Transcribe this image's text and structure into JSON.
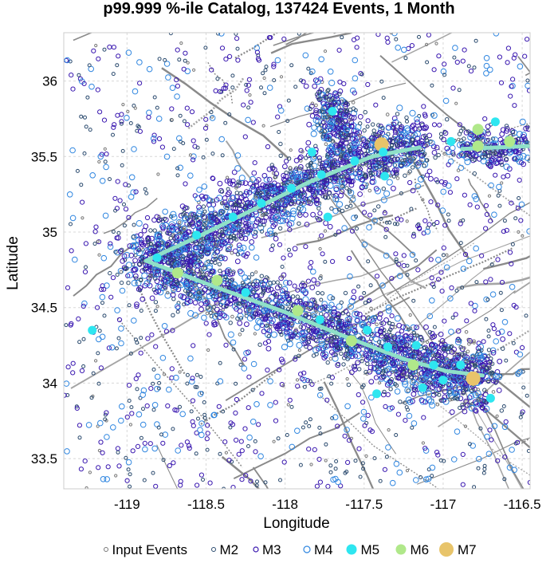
{
  "chart_data": {
    "type": "scatter",
    "title": "p99.999 %-ile Catalog, 137424 Events, 1 Month",
    "xlabel": "Longitude",
    "ylabel": "Latitude",
    "xlim": [
      -119.4,
      -116.45
    ],
    "ylim": [
      33.3,
      36.32
    ],
    "xticks": [
      -119,
      -118.5,
      -118,
      -117.5,
      -117,
      -116.5
    ],
    "yticks": [
      33.5,
      34,
      34.5,
      35,
      35.5,
      36
    ],
    "grid": true,
    "legend_position": "bottom",
    "legend": [
      {
        "label": "Input Events",
        "color": "#777777",
        "style": "open-small"
      },
      {
        "label": "M2",
        "color": "#2a4a6e",
        "style": "open-small"
      },
      {
        "label": "M3",
        "color": "#3a18b0",
        "style": "open"
      },
      {
        "label": "M4",
        "color": "#2f86e0",
        "style": "open-large"
      },
      {
        "label": "M5",
        "color": "#2ee6f0",
        "style": "filled"
      },
      {
        "label": "M6",
        "color": "#b0e88a",
        "style": "filled"
      },
      {
        "label": "M7",
        "color": "#e8c46a",
        "style": "filled-large"
      }
    ],
    "rupture_traces": [
      {
        "name": "",
        "color": "#8fe0c8",
        "points": [
          [
            -118.88,
            34.81
          ],
          [
            -118.55,
            34.97
          ],
          [
            -118.2,
            35.15
          ],
          [
            -117.85,
            35.33
          ],
          [
            -117.45,
            35.5
          ],
          [
            -117.15,
            35.56
          ]
        ]
      },
      {
        "name": "",
        "color": "#8fe0c8",
        "points": [
          [
            -118.88,
            34.81
          ],
          [
            -118.45,
            34.64
          ],
          [
            -118.0,
            34.47
          ],
          [
            -117.6,
            34.3
          ],
          [
            -117.25,
            34.16
          ],
          [
            -116.98,
            34.08
          ],
          [
            -116.75,
            34.05
          ]
        ]
      },
      {
        "name": "",
        "color": "#8fe0c8",
        "points": [
          [
            -116.88,
            35.55
          ],
          [
            -116.45,
            35.57
          ]
        ]
      }
    ],
    "large_events": [
      {
        "mag": "M7",
        "lon": -117.39,
        "lat": 35.58
      },
      {
        "mag": "M7",
        "lon": -116.81,
        "lat": 34.03
      },
      {
        "mag": "M6",
        "lon": -118.43,
        "lat": 34.68
      },
      {
        "mag": "M6",
        "lon": -118.68,
        "lat": 34.73
      },
      {
        "mag": "M6",
        "lon": -117.92,
        "lat": 34.48
      },
      {
        "mag": "M6",
        "lon": -117.58,
        "lat": 34.28
      },
      {
        "mag": "M6",
        "lon": -117.19,
        "lat": 34.12
      },
      {
        "mag": "M6",
        "lon": -116.78,
        "lat": 35.68
      },
      {
        "mag": "M6",
        "lon": -116.58,
        "lat": 35.6
      },
      {
        "mag": "M6",
        "lon": -116.78,
        "lat": 35.57
      },
      {
        "mag": "M5",
        "lon": -118.81,
        "lat": 34.83
      },
      {
        "mag": "M5",
        "lon": -118.56,
        "lat": 34.98
      },
      {
        "mag": "M5",
        "lon": -118.33,
        "lat": 35.1
      },
      {
        "mag": "M5",
        "lon": -118.15,
        "lat": 35.19
      },
      {
        "mag": "M5",
        "lon": -117.96,
        "lat": 35.29
      },
      {
        "mag": "M5",
        "lon": -117.77,
        "lat": 35.38
      },
      {
        "mag": "M5",
        "lon": -117.56,
        "lat": 35.47
      },
      {
        "mag": "M5",
        "lon": -117.38,
        "lat": 35.53
      },
      {
        "mag": "M5",
        "lon": -117.83,
        "lat": 35.53
      },
      {
        "mag": "M5",
        "lon": -117.7,
        "lat": 35.8
      },
      {
        "mag": "M5",
        "lon": -117.37,
        "lat": 35.37
      },
      {
        "mag": "M5",
        "lon": -117.73,
        "lat": 35.1
      },
      {
        "mag": "M5",
        "lon": -118.25,
        "lat": 34.6
      },
      {
        "mag": "M5",
        "lon": -117.78,
        "lat": 34.42
      },
      {
        "mag": "M5",
        "lon": -117.48,
        "lat": 34.35
      },
      {
        "mag": "M5",
        "lon": -117.35,
        "lat": 34.24
      },
      {
        "mag": "M5",
        "lon": -117.17,
        "lat": 34.25
      },
      {
        "mag": "M5",
        "lon": -117.06,
        "lat": 34.12
      },
      {
        "mag": "M5",
        "lon": -117.0,
        "lat": 34.02
      },
      {
        "mag": "M5",
        "lon": -116.89,
        "lat": 34.12
      },
      {
        "mag": "M5",
        "lon": -116.7,
        "lat": 33.9
      },
      {
        "mag": "M5",
        "lon": -116.67,
        "lat": 35.73
      },
      {
        "mag": "M5",
        "lon": -116.95,
        "lat": 35.6
      },
      {
        "mag": "M5",
        "lon": -117.13,
        "lat": 33.97
      },
      {
        "mag": "M5",
        "lon": -117.42,
        "lat": 33.93
      },
      {
        "mag": "M5",
        "lon": -119.22,
        "lat": 34.35
      }
    ]
  }
}
